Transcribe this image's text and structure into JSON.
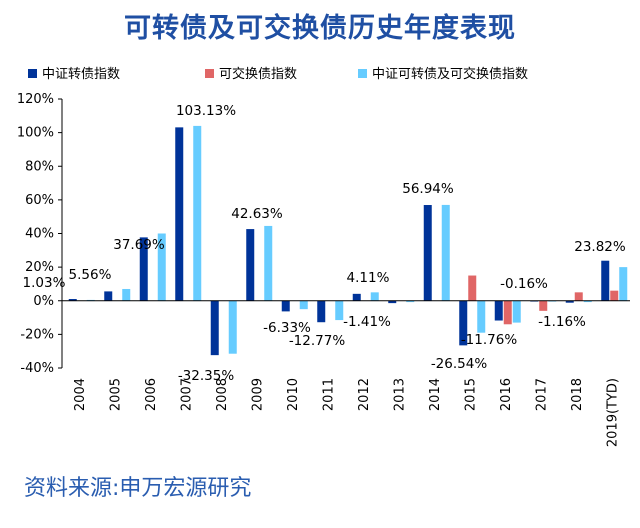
{
  "title": "可转债及可交换债历史年度表现",
  "source": "资料来源:申万宏源研究",
  "chart_data": {
    "type": "bar",
    "categories": [
      "2004",
      "2005",
      "2006",
      "2007",
      "2008",
      "2009",
      "2010",
      "2011",
      "2012",
      "2013",
      "2014",
      "2015",
      "2016",
      "2017",
      "2018",
      "2019(TYD)"
    ],
    "series": [
      {
        "name": "中证转债指数",
        "color": "#003399",
        "values": [
          1.03,
          5.56,
          37.69,
          103.13,
          -32.35,
          42.63,
          -6.33,
          -12.77,
          4.11,
          -1.41,
          56.94,
          -26.54,
          -11.76,
          -0.16,
          -1.16,
          23.82
        ]
      },
      {
        "name": "可交换债指数",
        "color": "#e06666",
        "values": [
          null,
          null,
          null,
          null,
          null,
          null,
          null,
          null,
          null,
          null,
          null,
          15.0,
          -14.0,
          -6.0,
          5.0,
          6.0
        ]
      },
      {
        "name": "中证可转债及可交换债指数",
        "color": "#66ccff",
        "values": [
          0.5,
          7.0,
          40.0,
          104.0,
          -31.5,
          44.5,
          -5.0,
          -11.5,
          5.0,
          -0.8,
          57.0,
          -19.0,
          -13.0,
          -0.5,
          -0.8,
          20.0
        ]
      }
    ],
    "data_labels": [
      "1.03%",
      "5.56%",
      "37.69%",
      "103.13%",
      "-32.35%",
      "42.63%",
      "-6.33%",
      "-12.77%",
      "4.11%",
      "-1.41%",
      "56.94%",
      "-26.54%",
      "-11.76%",
      "-0.16%",
      "-1.16%",
      "23.82%"
    ],
    "y_ticks": [
      "120%",
      "100%",
      "80%",
      "60%",
      "40%",
      "20%",
      "0%",
      "-20%",
      "-40%"
    ],
    "ylim": [
      -40,
      120
    ],
    "legend_position": "top",
    "grid": false
  }
}
